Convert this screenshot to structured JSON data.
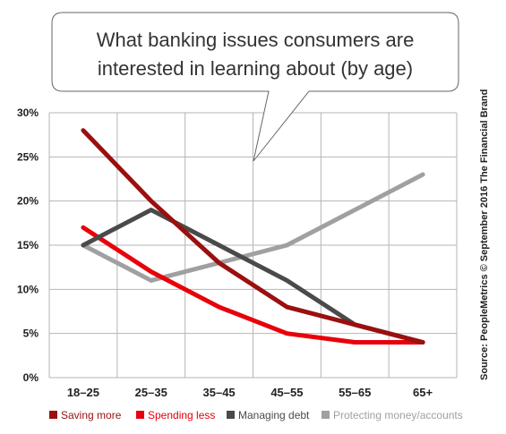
{
  "chart_data": {
    "type": "line",
    "title_lines": [
      "What banking issues consumers are",
      "interested in learning about (by age)"
    ],
    "categories": [
      "18–25",
      "25–35",
      "35–45",
      "45–55",
      "55–65",
      "65+"
    ],
    "y_ticks": [
      "0%",
      "5%",
      "10%",
      "15%",
      "20%",
      "25%",
      "30%"
    ],
    "ylim": [
      0,
      30
    ],
    "grid": true,
    "legend_position": "bottom",
    "source": "Source: PeopleMetrics © September 2016 The Financial Brand",
    "series": [
      {
        "name": "Protecting money/accounts",
        "color": "#a0a0a0",
        "values": [
          15,
          11,
          13,
          15,
          19,
          23
        ]
      },
      {
        "name": "Spending less",
        "color": "#e8000b",
        "values": [
          17,
          12,
          8,
          5,
          4,
          4
        ]
      },
      {
        "name": "Managing debt",
        "color": "#4a4a4a",
        "values": [
          15,
          19,
          15,
          11,
          6,
          4
        ]
      },
      {
        "name": "Saving more",
        "color": "#9b0f0f",
        "values": [
          28,
          20,
          13,
          8,
          6,
          4
        ]
      }
    ],
    "legend_order": [
      "Saving more",
      "Spending less",
      "Managing debt",
      "Protecting money/accounts"
    ]
  }
}
